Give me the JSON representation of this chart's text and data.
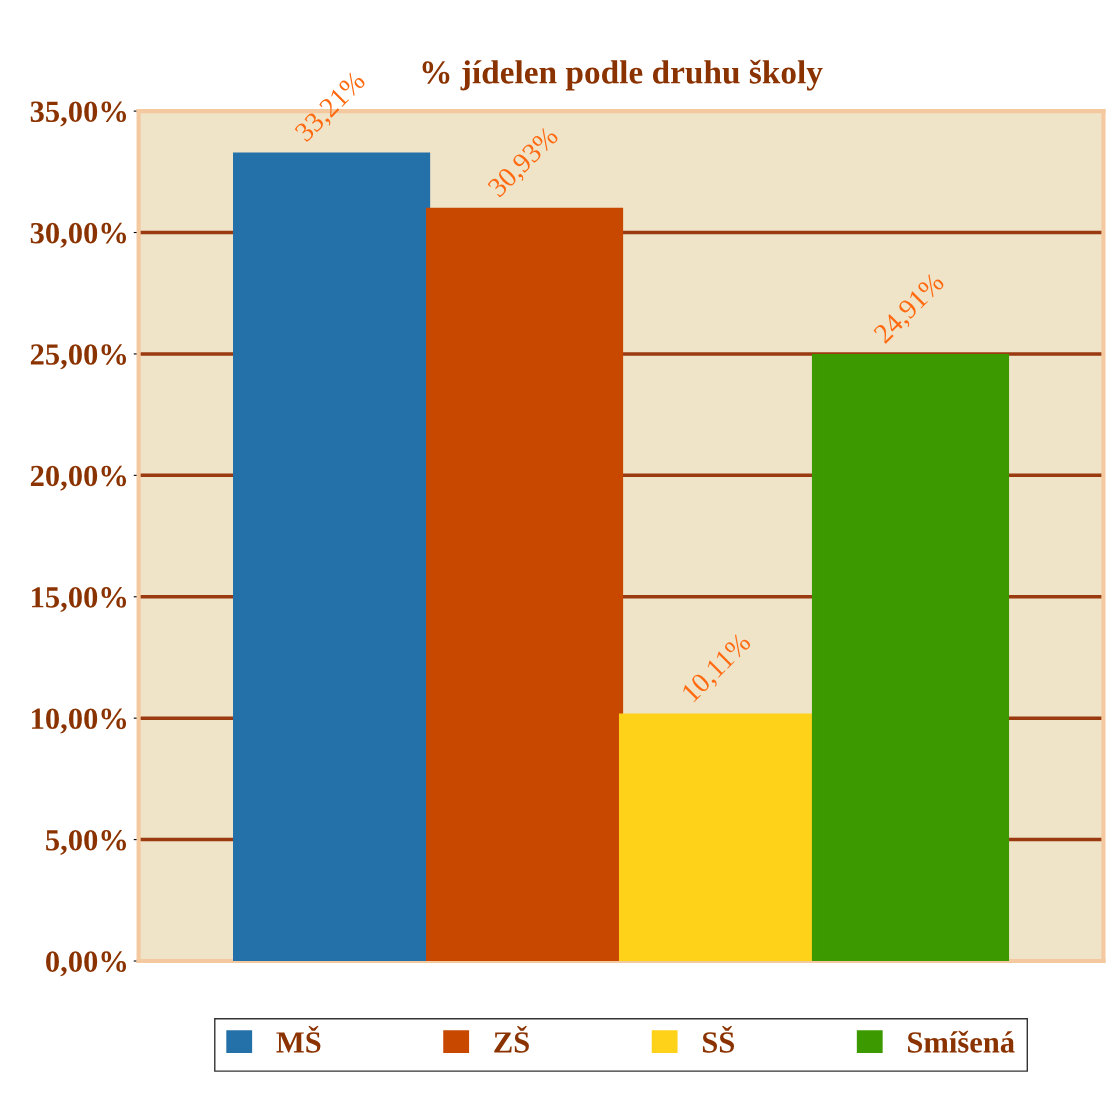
{
  "chart_data": {
    "type": "bar",
    "title": "% jídelen podle druhu školy",
    "categories": [
      null
    ],
    "series": [
      {
        "name": "MŠ",
        "color": "#2470a8",
        "values": [
          33.21
        ],
        "value_labels": [
          "33,21%"
        ]
      },
      {
        "name": "ZŠ",
        "color": "#c84800",
        "values": [
          30.93
        ],
        "value_labels": [
          "30,93%"
        ]
      },
      {
        "name": "SŠ",
        "color": "#ffd21a",
        "values": [
          10.11
        ],
        "value_labels": [
          "10,11%"
        ]
      },
      {
        "name": "Smíšená",
        "color": "#3c9a00",
        "values": [
          24.91
        ],
        "value_labels": [
          "24,91%"
        ]
      }
    ],
    "ylim": [
      0,
      35
    ],
    "yticks": [
      {
        "value": 0,
        "label": "0,00%"
      },
      {
        "value": 5,
        "label": "5,00%"
      },
      {
        "value": 10,
        "label": "10,00%"
      },
      {
        "value": 15,
        "label": "15,00%"
      },
      {
        "value": 20,
        "label": "20,00%"
      },
      {
        "value": 25,
        "label": "25,00%"
      },
      {
        "value": 30,
        "label": "30,00%"
      },
      {
        "value": 35,
        "label": "35,00%"
      }
    ],
    "grid": "y",
    "legend": "bottom"
  }
}
